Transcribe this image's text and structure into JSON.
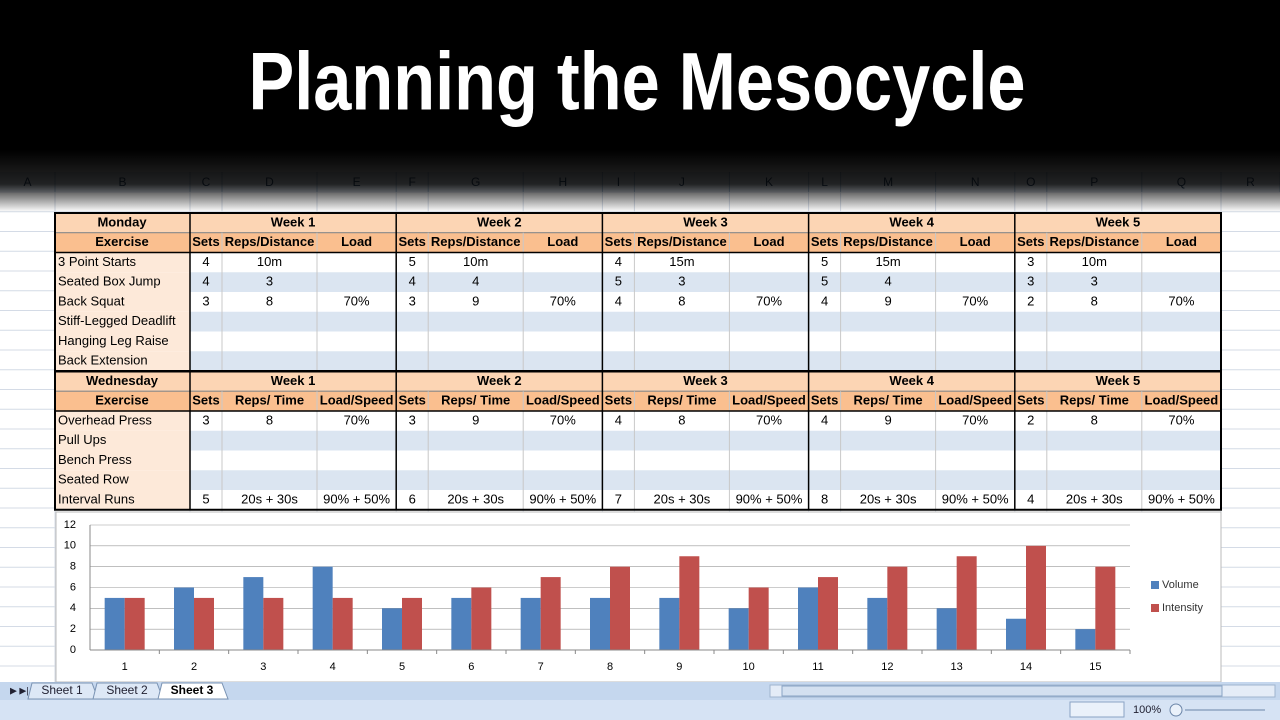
{
  "title": "Planning the Mesocycle",
  "columns": [
    "A",
    "B",
    "C",
    "D",
    "E",
    "F",
    "G",
    "H",
    "I",
    "J",
    "K",
    "L",
    "M",
    "N",
    "O",
    "P",
    "Q",
    "R"
  ],
  "tables": [
    {
      "day": "Monday",
      "first_header": "Exercise",
      "weeks": [
        "Week 1",
        "Week 2",
        "Week 3",
        "Week 4",
        "Week 5"
      ],
      "subheaders": [
        "Sets",
        "Reps/Distance",
        "Load"
      ],
      "rows": [
        {
          "exercise": "3 Point Starts",
          "cells": [
            [
              "4",
              "10m",
              null
            ],
            [
              "5",
              "10m",
              null
            ],
            [
              "4",
              "15m",
              null
            ],
            [
              "5",
              "15m",
              null
            ],
            [
              "3",
              "10m",
              null
            ]
          ]
        },
        {
          "exercise": "Seated Box Jump",
          "cells": [
            [
              "4",
              "3",
              null
            ],
            [
              "4",
              "4",
              null
            ],
            [
              "5",
              "3",
              null
            ],
            [
              "5",
              "4",
              null
            ],
            [
              "3",
              "3",
              null
            ]
          ]
        },
        {
          "exercise": "Back Squat",
          "cells": [
            [
              "3",
              "8",
              "70%"
            ],
            [
              "3",
              "9",
              "70%"
            ],
            [
              "4",
              "8",
              "70%"
            ],
            [
              "4",
              "9",
              "70%"
            ],
            [
              "2",
              "8",
              "70%"
            ]
          ]
        },
        {
          "exercise": "Stiff-Legged Deadlift",
          "cells": [
            [
              null,
              null,
              null
            ],
            [
              null,
              null,
              null
            ],
            [
              null,
              null,
              null
            ],
            [
              null,
              null,
              null
            ],
            [
              null,
              null,
              null
            ]
          ]
        },
        {
          "exercise": "Hanging Leg Raise",
          "cells": [
            [
              null,
              null,
              null
            ],
            [
              null,
              null,
              null
            ],
            [
              null,
              null,
              null
            ],
            [
              null,
              null,
              null
            ],
            [
              null,
              null,
              null
            ]
          ]
        },
        {
          "exercise": "Back Extension",
          "cells": [
            [
              null,
              null,
              null
            ],
            [
              null,
              null,
              null
            ],
            [
              null,
              null,
              null
            ],
            [
              null,
              null,
              null
            ],
            [
              null,
              null,
              null
            ]
          ]
        }
      ]
    },
    {
      "day": "Wednesday",
      "first_header": "Exercise",
      "weeks": [
        "Week 1",
        "Week 2",
        "Week 3",
        "Week 4",
        "Week 5"
      ],
      "subheaders": [
        "Sets",
        "Reps/ Time",
        "Load/Speed"
      ],
      "rows": [
        {
          "exercise": "Overhead Press",
          "cells": [
            [
              "3",
              "8",
              "70%"
            ],
            [
              "3",
              "9",
              "70%"
            ],
            [
              "4",
              "8",
              "70%"
            ],
            [
              "4",
              "9",
              "70%"
            ],
            [
              "2",
              "8",
              "70%"
            ]
          ]
        },
        {
          "exercise": "Pull Ups",
          "cells": [
            [
              null,
              null,
              null
            ],
            [
              null,
              null,
              null
            ],
            [
              null,
              null,
              null
            ],
            [
              null,
              null,
              null
            ],
            [
              null,
              null,
              null
            ]
          ]
        },
        {
          "exercise": "Bench Press",
          "cells": [
            [
              null,
              null,
              null
            ],
            [
              null,
              null,
              null
            ],
            [
              null,
              null,
              null
            ],
            [
              null,
              null,
              null
            ],
            [
              null,
              null,
              null
            ]
          ]
        },
        {
          "exercise": "Seated Row",
          "cells": [
            [
              null,
              null,
              null
            ],
            [
              null,
              null,
              null
            ],
            [
              null,
              null,
              null
            ],
            [
              null,
              null,
              null
            ],
            [
              null,
              null,
              null
            ]
          ]
        },
        {
          "exercise": "Interval Runs",
          "cells": [
            [
              "5",
              "20s + 30s",
              "90% + 50%"
            ],
            [
              "6",
              "20s + 30s",
              "90% + 50%"
            ],
            [
              "7",
              "20s + 30s",
              "90% + 50%"
            ],
            [
              "8",
              "20s + 30s",
              "90% + 50%"
            ],
            [
              "4",
              "20s + 30s",
              "90% + 50%"
            ]
          ]
        }
      ]
    }
  ],
  "chart_data": {
    "type": "bar",
    "categories": [
      "1",
      "2",
      "3",
      "4",
      "5",
      "6",
      "7",
      "8",
      "9",
      "10",
      "11",
      "12",
      "13",
      "14",
      "15"
    ],
    "series": [
      {
        "name": "Volume",
        "color": "#4f81bd",
        "values": [
          5,
          6,
          7,
          8,
          4,
          5,
          5,
          5,
          5,
          4,
          6,
          5,
          4,
          3,
          2
        ]
      },
      {
        "name": "Intensity",
        "color": "#c0504d",
        "values": [
          5,
          5,
          5,
          5,
          5,
          6,
          7,
          8,
          9,
          6,
          7,
          8,
          9,
          10,
          8
        ]
      }
    ],
    "ylim": [
      0,
      12
    ],
    "yticks": [
      0,
      2,
      4,
      6,
      8,
      10,
      12
    ],
    "grid": true,
    "legend": "right"
  },
  "sheet_tabs": [
    "Sheet 1",
    "Sheet 2",
    "Sheet 3"
  ],
  "active_tab": 2,
  "zoom": "100%"
}
